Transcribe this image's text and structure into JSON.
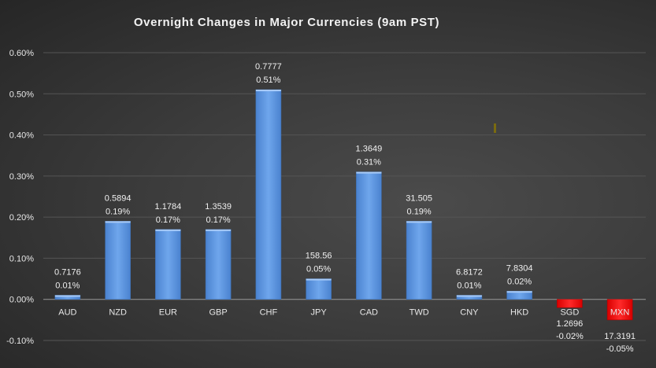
{
  "chart_data": {
    "type": "bar",
    "title": "Overnight Changes in Major Currencies (9am PST)",
    "xlabel": "",
    "ylabel": "",
    "ylim": [
      -0.1,
      0.6
    ],
    "yticks": [
      "-0.10%",
      "0.00%",
      "0.10%",
      "0.20%",
      "0.30%",
      "0.40%",
      "0.50%",
      "0.60%"
    ],
    "grid": true,
    "categories": [
      "AUD",
      "NZD",
      "EUR",
      "GBP",
      "CHF",
      "JPY",
      "CAD",
      "TWD",
      "CNY",
      "HKD",
      "SGD",
      "MXN"
    ],
    "values": [
      0.01,
      0.19,
      0.17,
      0.17,
      0.51,
      0.05,
      0.31,
      0.19,
      0.01,
      0.02,
      -0.02,
      -0.05
    ],
    "rates": [
      "0.7176",
      "0.5894",
      "1.1784",
      "1.3539",
      "0.7777",
      "158.56",
      "1.3649",
      "31.505",
      "6.8172",
      "7.8304",
      "1.2696",
      "17.3191"
    ],
    "data_labels": [
      "0.01%",
      "0.19%",
      "0.17%",
      "0.17%",
      "0.51%",
      "0.05%",
      "0.31%",
      "0.19%",
      "0.01%",
      "0.02%",
      "-0.02%",
      "-0.05%"
    ],
    "colors": {
      "positive": "#5b93dc",
      "negative": "#ff0000"
    }
  }
}
